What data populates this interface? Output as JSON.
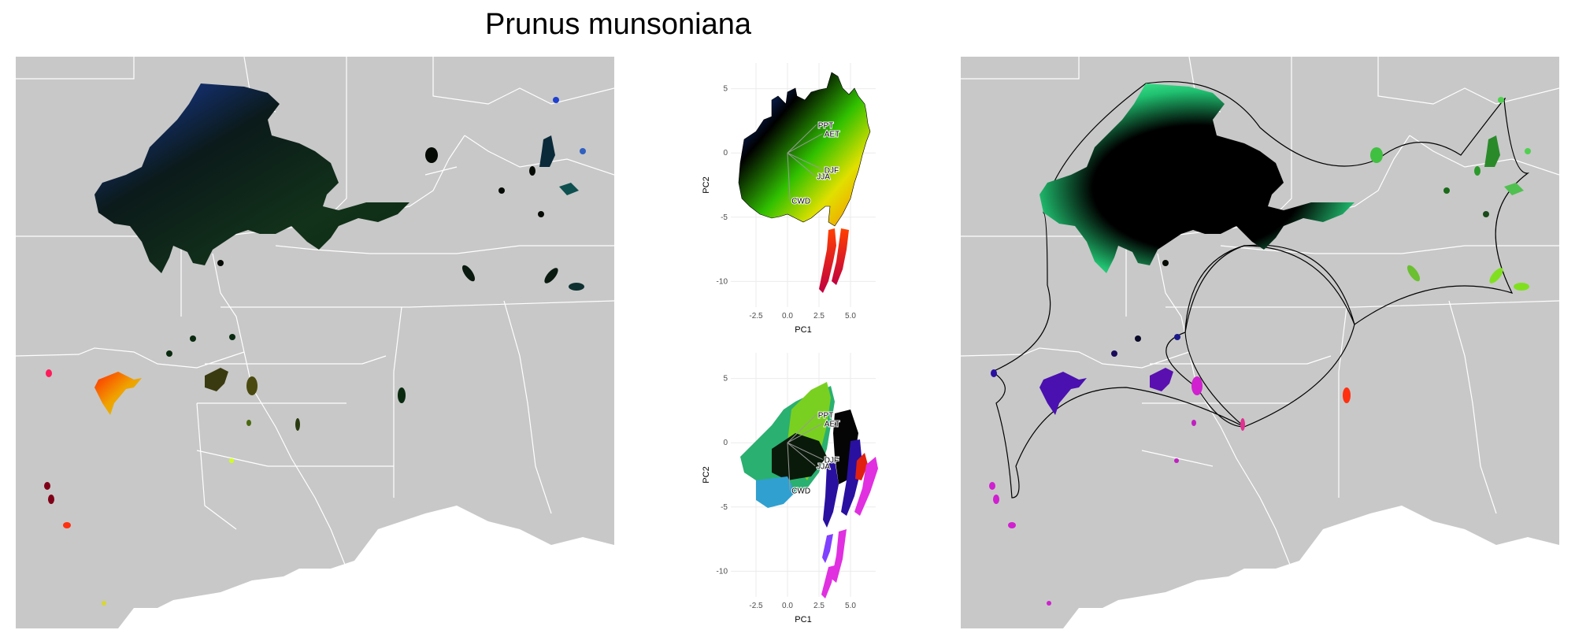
{
  "title": "Prunus munsoniana",
  "colors": {
    "land": "#c8c8c8",
    "water": "#ffffff",
    "borders": "#ffffff",
    "grid": "#ebebeb"
  },
  "maps": {
    "left": {
      "description_icon": "map-icon"
    },
    "right": {
      "description_icon": "map-icon"
    }
  },
  "pca_top": {
    "xlabel": "PC1",
    "ylabel": "PC2",
    "xticks": [
      "-2.5",
      "0.0",
      "2.5",
      "5.0"
    ],
    "yticks": [
      "5",
      "0",
      "-5",
      "-10"
    ],
    "vectors": [
      "PPT",
      "AET",
      "DJF",
      "JJA",
      "CWD"
    ]
  },
  "pca_bottom": {
    "xlabel": "PC1",
    "ylabel": "PC2",
    "xticks": [
      "-2.5",
      "0.0",
      "2.5",
      "5.0"
    ],
    "yticks": [
      "5",
      "0",
      "-5",
      "-10"
    ],
    "vectors": [
      "PPT",
      "AET",
      "DJF",
      "JJA",
      "CWD"
    ]
  },
  "chart_data": [
    {
      "type": "scatter",
      "panel": "top",
      "xlabel": "PC1",
      "ylabel": "PC2",
      "xlim": [
        -4.5,
        7
      ],
      "ylim": [
        -12,
        7
      ],
      "vectors": [
        {
          "name": "PPT",
          "x": 2.3,
          "y": 2.2
        },
        {
          "name": "AET",
          "x": 2.8,
          "y": 1.5
        },
        {
          "name": "DJF",
          "x": 2.8,
          "y": -1.3
        },
        {
          "name": "JJA",
          "x": 2.2,
          "y": -1.8
        },
        {
          "name": "CWD",
          "x": 0.2,
          "y": -3.7
        }
      ]
    },
    {
      "type": "scatter",
      "panel": "bottom",
      "xlabel": "PC1",
      "ylabel": "PC2",
      "xlim": [
        -4.5,
        7
      ],
      "ylim": [
        -12,
        7
      ],
      "vectors": [
        {
          "name": "PPT",
          "x": 2.3,
          "y": 2.2
        },
        {
          "name": "AET",
          "x": 2.8,
          "y": 1.5
        },
        {
          "name": "DJF",
          "x": 2.8,
          "y": -1.3
        },
        {
          "name": "JJA",
          "x": 2.2,
          "y": -1.8
        },
        {
          "name": "CWD",
          "x": 0.2,
          "y": -3.7
        }
      ]
    }
  ]
}
